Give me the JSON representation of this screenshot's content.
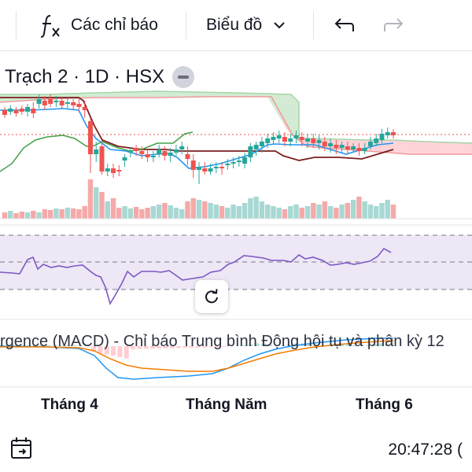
{
  "toolbar": {
    "indicators_label": "Các chỉ báo",
    "chart_type_label": "Biểu đồ"
  },
  "legend": {
    "symbol": "Trạch 2 · 1D · HSX"
  },
  "macd": {
    "label": "rgence (MACD) - Chỉ báo Trung bình Động hội tụ và phân kỳ 12"
  },
  "x_axis": {
    "labels": [
      "Tháng 4",
      "Tháng Năm",
      "Tháng 6"
    ]
  },
  "status": {
    "time": "20:47:28 ("
  },
  "colors": {
    "up": "#26a69a",
    "down": "#ef5350",
    "cloud_green": "#c8e6c9",
    "cloud_red": "#ffcdd2",
    "rsi_line": "#7e57c2",
    "rsi_band": "#ede7f6",
    "kijun": "#7b1e1e",
    "tenkan": "#2196f3",
    "chikou": "#43a047",
    "macd_line": "#2196f3",
    "signal_line": "#f57c00"
  },
  "icons": [
    "fx-icon",
    "chevron-down-icon",
    "undo-icon",
    "redo-icon",
    "minus-icon",
    "reset-icon",
    "calendar-icon"
  ]
}
